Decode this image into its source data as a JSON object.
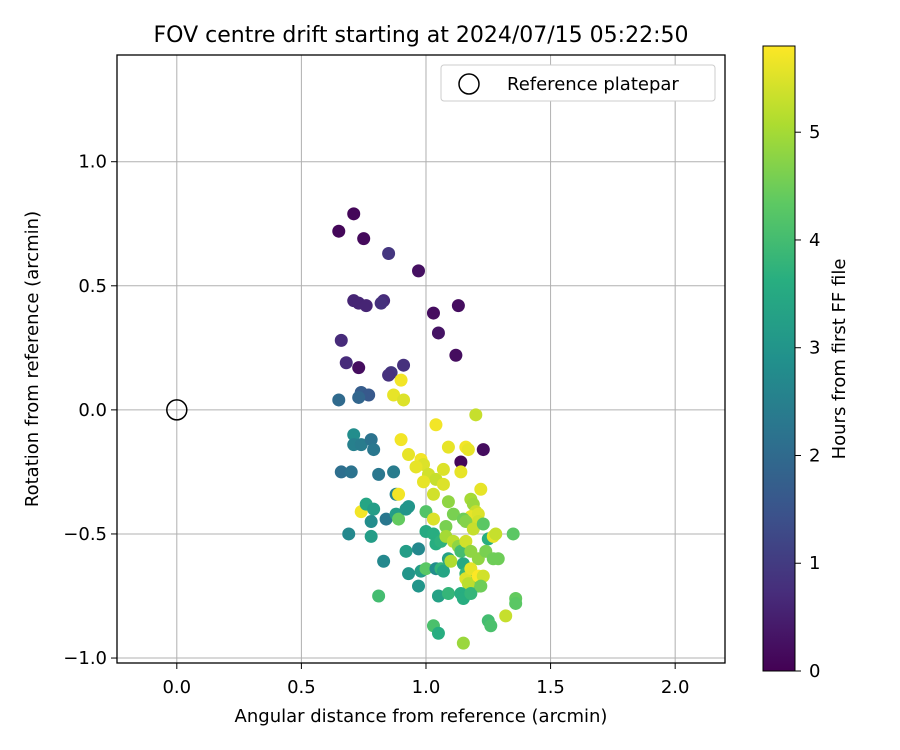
{
  "chart_data": {
    "type": "scatter",
    "title": "FOV centre drift starting at 2024/07/15 05:22:50",
    "xlabel": "Angular distance from reference (arcmin)",
    "ylabel": "Rotation from reference (arcmin)",
    "xlim": [
      -0.24,
      2.2
    ],
    "ylim": [
      -1.02,
      1.43
    ],
    "xticks": [
      0.0,
      0.5,
      1.0,
      1.5,
      2.0
    ],
    "xtick_labels": [
      "0.0",
      "0.5",
      "1.0",
      "1.5",
      "2.0"
    ],
    "yticks": [
      -1.0,
      -0.5,
      0.0,
      0.5,
      1.0
    ],
    "ytick_labels": [
      "−1.0",
      "−0.5",
      "0.0",
      "0.5",
      "1.0"
    ],
    "grid": true,
    "legend": {
      "placement": "top-right",
      "label": "Reference platepar",
      "marker": "open-circle"
    },
    "reference_point": {
      "x": 0.0,
      "y": 0.0
    },
    "colorbar": {
      "label": "Hours from first FF file",
      "min": 0,
      "max": 5.8,
      "ticks": [
        0,
        1,
        2,
        3,
        4,
        5
      ],
      "tick_labels": [
        "0",
        "1",
        "2",
        "3",
        "4",
        "5"
      ],
      "colormap": "viridis"
    },
    "points": [
      [
        0.71,
        0.79,
        0.1
      ],
      [
        0.65,
        0.72,
        0.1
      ],
      [
        0.75,
        0.69,
        0.15
      ],
      [
        0.85,
        0.63,
        0.9
      ],
      [
        0.97,
        0.56,
        0.25
      ],
      [
        1.13,
        0.42,
        0.2
      ],
      [
        1.03,
        0.39,
        0.2
      ],
      [
        0.71,
        0.44,
        0.6
      ],
      [
        0.73,
        0.43,
        0.6
      ],
      [
        0.76,
        0.42,
        0.6
      ],
      [
        0.83,
        0.44,
        0.7
      ],
      [
        0.82,
        0.43,
        0.8
      ],
      [
        1.05,
        0.31,
        0.3
      ],
      [
        0.66,
        0.28,
        0.7
      ],
      [
        1.12,
        0.22,
        0.2
      ],
      [
        0.68,
        0.19,
        0.7
      ],
      [
        0.73,
        0.17,
        0.2
      ],
      [
        0.91,
        0.18,
        0.8
      ],
      [
        0.86,
        0.15,
        0.9
      ],
      [
        0.85,
        0.14,
        0.8
      ],
      [
        0.74,
        0.07,
        1.7
      ],
      [
        0.77,
        0.06,
        1.6
      ],
      [
        0.65,
        0.04,
        2.0
      ],
      [
        0.73,
        0.05,
        1.9
      ],
      [
        0.9,
        0.12,
        5.7
      ],
      [
        0.87,
        0.06,
        5.6
      ],
      [
        0.91,
        0.04,
        5.5
      ],
      [
        1.2,
        -0.02,
        5.3
      ],
      [
        1.04,
        -0.06,
        5.7
      ],
      [
        0.71,
        -0.1,
        2.8
      ],
      [
        0.71,
        -0.14,
        2.5
      ],
      [
        0.74,
        -0.14,
        2.4
      ],
      [
        0.78,
        -0.12,
        2.2
      ],
      [
        0.79,
        -0.16,
        2.3
      ],
      [
        0.9,
        -0.12,
        5.7
      ],
      [
        0.93,
        -0.18,
        5.6
      ],
      [
        0.98,
        -0.2,
        5.7
      ],
      [
        0.99,
        -0.22,
        5.5
      ],
      [
        1.09,
        -0.15,
        5.6
      ],
      [
        1.16,
        -0.15,
        5.7
      ],
      [
        1.17,
        -0.16,
        5.6
      ],
      [
        1.23,
        -0.16,
        0.2
      ],
      [
        1.14,
        -0.21,
        0.1
      ],
      [
        1.14,
        -0.25,
        5.6
      ],
      [
        0.66,
        -0.25,
        2.1
      ],
      [
        0.7,
        -0.25,
        2.2
      ],
      [
        0.81,
        -0.26,
        2.3
      ],
      [
        0.87,
        -0.25,
        2.4
      ],
      [
        0.88,
        -0.34,
        2.6
      ],
      [
        0.96,
        -0.23,
        5.6
      ],
      [
        1.01,
        -0.26,
        5.4
      ],
      [
        1.04,
        -0.28,
        5.3
      ],
      [
        1.07,
        -0.24,
        5.5
      ],
      [
        0.99,
        -0.29,
        5.6
      ],
      [
        1.03,
        -0.34,
        5.4
      ],
      [
        1.07,
        -0.3,
        5.5
      ],
      [
        0.89,
        -0.34,
        5.7
      ],
      [
        1.09,
        -0.37,
        4.8
      ],
      [
        1.18,
        -0.36,
        5.0
      ],
      [
        1.22,
        -0.32,
        5.6
      ],
      [
        1.19,
        -0.38,
        4.9
      ],
      [
        1.2,
        -0.41,
        5.3
      ],
      [
        1.18,
        -0.43,
        5.6
      ],
      [
        1.21,
        -0.42,
        5.5
      ],
      [
        1.21,
        -0.45,
        5.4
      ],
      [
        0.74,
        -0.41,
        5.7
      ],
      [
        0.76,
        -0.38,
        3.4
      ],
      [
        0.79,
        -0.4,
        3.2
      ],
      [
        0.78,
        -0.45,
        2.8
      ],
      [
        0.84,
        -0.44,
        2.3
      ],
      [
        0.88,
        -0.42,
        3.2
      ],
      [
        0.89,
        -0.44,
        4.4
      ],
      [
        0.92,
        -0.4,
        3.0
      ],
      [
        0.93,
        -0.39,
        3.0
      ],
      [
        1.0,
        -0.41,
        4.2
      ],
      [
        1.03,
        -0.44,
        5.5
      ],
      [
        1.08,
        -0.47,
        4.6
      ],
      [
        1.11,
        -0.42,
        4.6
      ],
      [
        1.15,
        -0.44,
        4.5
      ],
      [
        1.16,
        -0.45,
        4.7
      ],
      [
        1.19,
        -0.48,
        5.3
      ],
      [
        1.23,
        -0.46,
        4.3
      ],
      [
        1.25,
        -0.52,
        3.6
      ],
      [
        1.27,
        -0.51,
        5.6
      ],
      [
        1.28,
        -0.5,
        5.3
      ],
      [
        1.35,
        -0.5,
        4.3
      ],
      [
        0.69,
        -0.5,
        2.7
      ],
      [
        0.78,
        -0.51,
        3.2
      ],
      [
        1.0,
        -0.49,
        3.5
      ],
      [
        1.03,
        -0.5,
        3.6
      ],
      [
        1.04,
        -0.54,
        3.6
      ],
      [
        1.06,
        -0.53,
        3.7
      ],
      [
        1.08,
        -0.51,
        5.0
      ],
      [
        1.11,
        -0.53,
        5.2
      ],
      [
        1.13,
        -0.55,
        4.8
      ],
      [
        1.14,
        -0.57,
        4.0
      ],
      [
        1.16,
        -0.53,
        5.4
      ],
      [
        1.18,
        -0.57,
        4.8
      ],
      [
        1.21,
        -0.6,
        4.8
      ],
      [
        1.24,
        -0.57,
        4.6
      ],
      [
        1.27,
        -0.6,
        4.5
      ],
      [
        1.29,
        -0.6,
        4.5
      ],
      [
        0.92,
        -0.57,
        3.2
      ],
      [
        0.97,
        -0.56,
        2.7
      ],
      [
        0.83,
        -0.61,
        2.7
      ],
      [
        0.93,
        -0.66,
        3.0
      ],
      [
        0.98,
        -0.65,
        3.2
      ],
      [
        1.0,
        -0.64,
        4.3
      ],
      [
        1.04,
        -0.64,
        2.8
      ],
      [
        1.06,
        -0.64,
        3.8
      ],
      [
        1.07,
        -0.65,
        3.4
      ],
      [
        1.09,
        -0.6,
        3.3
      ],
      [
        1.1,
        -0.61,
        5.1
      ],
      [
        1.15,
        -0.62,
        3.5
      ],
      [
        1.16,
        -0.66,
        3.8
      ],
      [
        1.16,
        -0.68,
        5.5
      ],
      [
        1.18,
        -0.64,
        5.6
      ],
      [
        1.19,
        -0.7,
        4.8
      ],
      [
        1.21,
        -0.71,
        4.5
      ],
      [
        1.17,
        -0.7,
        5.2
      ],
      [
        1.21,
        -0.67,
        5.8
      ],
      [
        1.23,
        -0.67,
        5.4
      ],
      [
        0.97,
        -0.71,
        3.0
      ],
      [
        1.05,
        -0.75,
        3.3
      ],
      [
        1.09,
        -0.74,
        3.8
      ],
      [
        1.14,
        -0.74,
        3.6
      ],
      [
        1.15,
        -0.76,
        3.6
      ],
      [
        1.18,
        -0.74,
        3.8
      ],
      [
        1.22,
        -0.71,
        4.5
      ],
      [
        0.81,
        -0.75,
        4.0
      ],
      [
        1.25,
        -0.85,
        4.0
      ],
      [
        1.26,
        -0.87,
        4.1
      ],
      [
        1.32,
        -0.83,
        5.3
      ],
      [
        1.36,
        -0.76,
        4.4
      ],
      [
        1.36,
        -0.78,
        4.3
      ],
      [
        1.03,
        -0.87,
        4.1
      ],
      [
        1.05,
        -0.9,
        3.6
      ],
      [
        1.15,
        -0.94,
        4.9
      ]
    ]
  }
}
